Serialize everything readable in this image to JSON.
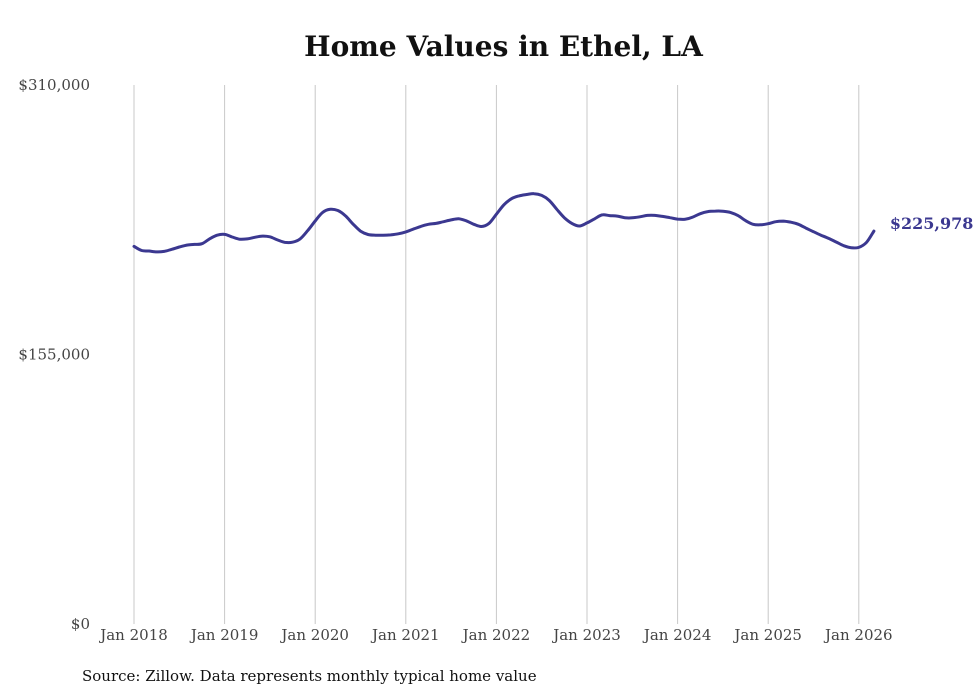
{
  "chart_data": {
    "type": "line",
    "title": "Home Values in Ethel, LA",
    "source": "Source: Zillow. Data represents monthly typical home value",
    "ylim": [
      0,
      310000
    ],
    "y_ticks": [
      "$0",
      "$155,000",
      "$310,000"
    ],
    "y_tick_values": [
      0,
      155000,
      310000
    ],
    "x_ticks": [
      "Jan 2018",
      "Jan 2019",
      "Jan 2020",
      "Jan 2021",
      "Jan 2022",
      "Jan 2023",
      "Jan 2024",
      "Jan 2025",
      "Jan 2026"
    ],
    "x_tick_values": [
      "2018-01",
      "2019-01",
      "2020-01",
      "2021-01",
      "2022-01",
      "2023-01",
      "2024-01",
      "2025-01",
      "2026-01"
    ],
    "grid": "vertical",
    "line_color": "#3b3890",
    "end_label": "$225,978",
    "series": [
      {
        "x": [
          "2018-01",
          "2018-02",
          "2018-03",
          "2018-04",
          "2018-05",
          "2018-06",
          "2018-07",
          "2018-08",
          "2018-09",
          "2018-10",
          "2018-11",
          "2018-12",
          "2019-01",
          "2019-02",
          "2019-03",
          "2019-04",
          "2019-05",
          "2019-06",
          "2019-07",
          "2019-08",
          "2019-09",
          "2019-10",
          "2019-11",
          "2019-12",
          "2020-01",
          "2020-02",
          "2020-03",
          "2020-04",
          "2020-05",
          "2020-06",
          "2020-07",
          "2020-08",
          "2020-09",
          "2020-10",
          "2020-11",
          "2020-12",
          "2021-01",
          "2021-02",
          "2021-03",
          "2021-04",
          "2021-05",
          "2021-06",
          "2021-07",
          "2021-08",
          "2021-09",
          "2021-10",
          "2021-11",
          "2021-12",
          "2022-01",
          "2022-02",
          "2022-03",
          "2022-04",
          "2022-05",
          "2022-06",
          "2022-07",
          "2022-08",
          "2022-09",
          "2022-10",
          "2022-11",
          "2022-12",
          "2023-01",
          "2023-02",
          "2023-03",
          "2023-04",
          "2023-05",
          "2023-06",
          "2023-07",
          "2023-08",
          "2023-09",
          "2023-10",
          "2023-11",
          "2023-12",
          "2024-01",
          "2024-02",
          "2024-03",
          "2024-04",
          "2024-05",
          "2024-06",
          "2024-07",
          "2024-08",
          "2024-09",
          "2024-10",
          "2024-11",
          "2024-12",
          "2025-01",
          "2025-02",
          "2025-03",
          "2025-04",
          "2025-05",
          "2025-06",
          "2025-07",
          "2025-08",
          "2025-09",
          "2025-10",
          "2025-11",
          "2025-12",
          "2026-01",
          "2026-02",
          "2026-03"
        ],
        "values": [
          217200,
          214800,
          214500,
          214000,
          214300,
          215500,
          216800,
          217900,
          218300,
          218700,
          221500,
          223600,
          224100,
          222600,
          221300,
          221500,
          222400,
          223100,
          222700,
          220900,
          219500,
          219600,
          221500,
          226200,
          231800,
          236800,
          238500,
          237800,
          234800,
          230100,
          226000,
          224000,
          223600,
          223600,
          223800,
          224400,
          225500,
          227100,
          228700,
          229900,
          230400,
          231400,
          232400,
          233100,
          231900,
          229900,
          228600,
          230300,
          235700,
          241100,
          244600,
          246200,
          247000,
          247500,
          246500,
          243600,
          238500,
          233700,
          230400,
          228900,
          230700,
          233000,
          235300,
          234900,
          234600,
          233700,
          233600,
          234200,
          235000,
          235000,
          234400,
          233700,
          232900,
          232800,
          234000,
          236000,
          237200,
          237500,
          237400,
          236700,
          234900,
          232000,
          229900,
          229600,
          230200,
          231400,
          231700,
          231100,
          229900,
          227700,
          225600,
          223600,
          221800,
          219700,
          217600,
          216400,
          216600,
          219400,
          225978
        ]
      }
    ]
  }
}
